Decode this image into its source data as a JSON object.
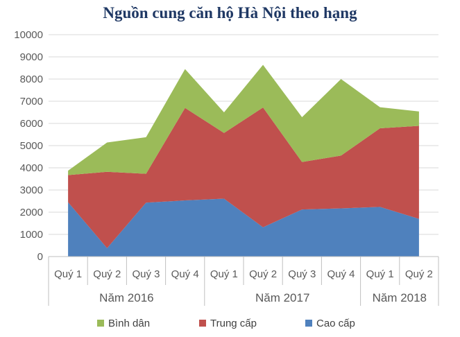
{
  "chart_data": {
    "type": "area",
    "stacked": true,
    "title": "Nguồn cung căn hộ Hà Nội theo hạng",
    "categories": [
      "Quý 1",
      "Quý 2",
      "Quý 3",
      "Quý 4",
      "Quý 1",
      "Quý 2",
      "Quý 3",
      "Quý 4",
      "Quý 1",
      "Quý 2"
    ],
    "groups": [
      {
        "label": "Năm 2016",
        "count": 4
      },
      {
        "label": "Năm 2017",
        "count": 4
      },
      {
        "label": "Năm 2018",
        "count": 2
      }
    ],
    "ylim": [
      0,
      10000
    ],
    "yticks": [
      0,
      1000,
      2000,
      3000,
      4000,
      5000,
      6000,
      7000,
      8000,
      9000,
      10000
    ],
    "grid": true,
    "legend_position": "bottom",
    "series": [
      {
        "name": "Cao cấp",
        "color": "#4f81bd",
        "values": [
          2450,
          380,
          2430,
          2530,
          2610,
          1320,
          2120,
          2170,
          2240,
          1700
        ]
      },
      {
        "name": "Trung cấp",
        "color": "#c0504d",
        "values": [
          1220,
          3440,
          1300,
          4170,
          2960,
          5400,
          2140,
          2380,
          3540,
          4190
        ]
      },
      {
        "name": "Bình dân",
        "color": "#9bbb59",
        "values": [
          200,
          1320,
          1650,
          1750,
          930,
          1920,
          2020,
          3450,
          950,
          650
        ]
      }
    ],
    "legend_order": [
      "Bình dân",
      "Trung cấp",
      "Cao cấp"
    ]
  }
}
